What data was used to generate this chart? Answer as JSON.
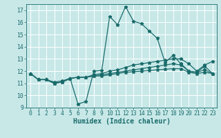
{
  "xlabel": "Humidex (Indice chaleur)",
  "xlim": [
    -0.5,
    23.5
  ],
  "ylim": [
    9,
    17.5
  ],
  "yticks": [
    9,
    10,
    11,
    12,
    13,
    14,
    15,
    16,
    17
  ],
  "xticks": [
    0,
    1,
    2,
    3,
    4,
    5,
    6,
    7,
    8,
    9,
    10,
    11,
    12,
    13,
    14,
    15,
    16,
    17,
    18,
    19,
    20,
    21,
    22,
    23
  ],
  "bg_color": "#c8e8e8",
  "grid_color": "#ffffff",
  "line_color": "#1a6b6b",
  "line1_y": [
    11.8,
    11.3,
    11.3,
    11.0,
    11.1,
    11.4,
    9.3,
    9.5,
    12.0,
    12.05,
    16.5,
    15.8,
    17.3,
    16.1,
    15.9,
    15.3,
    14.7,
    12.7,
    13.3,
    12.6,
    12.0,
    11.9,
    12.4,
    11.8
  ],
  "line2_y": [
    11.8,
    11.3,
    11.3,
    11.0,
    11.1,
    11.4,
    11.5,
    11.5,
    11.7,
    11.8,
    12.0,
    12.1,
    12.3,
    12.5,
    12.6,
    12.7,
    12.8,
    12.9,
    13.0,
    13.0,
    12.6,
    12.0,
    12.5,
    12.8
  ],
  "line3_y": [
    11.8,
    11.3,
    11.3,
    11.0,
    11.1,
    11.4,
    11.5,
    11.5,
    11.6,
    11.7,
    11.8,
    11.9,
    12.0,
    12.1,
    12.2,
    12.3,
    12.4,
    12.5,
    12.6,
    12.5,
    12.0,
    11.9,
    12.1,
    11.8
  ],
  "line4_y": [
    11.8,
    11.3,
    11.3,
    11.1,
    11.2,
    11.4,
    11.5,
    11.5,
    11.6,
    11.6,
    11.7,
    11.8,
    11.9,
    11.95,
    12.0,
    12.05,
    12.1,
    12.15,
    12.2,
    12.2,
    11.9,
    11.8,
    11.9,
    11.8
  ],
  "markersize": 3.5,
  "linewidth": 0.9,
  "tick_fontsize": 5.8,
  "xlabel_fontsize": 7.0
}
